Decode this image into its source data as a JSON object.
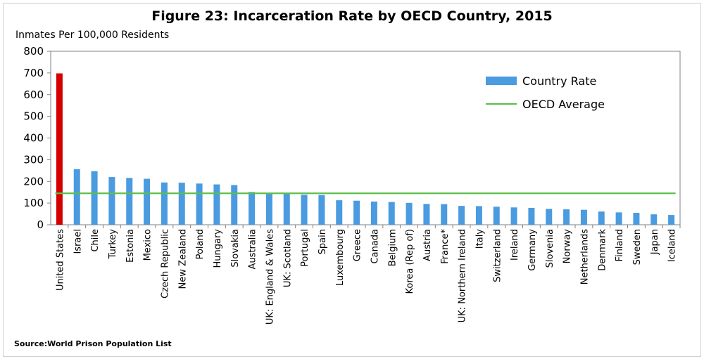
{
  "chart_data": {
    "type": "bar",
    "title": "Figure 23: Incarceration Rate by OECD Country, 2015",
    "ylabel": "Inmates Per 100,000 Residents",
    "ylim": [
      0,
      800
    ],
    "yticks": [
      0,
      100,
      200,
      300,
      400,
      500,
      600,
      700,
      800
    ],
    "grid": false,
    "legend_position": "top-right",
    "categories": [
      "United States",
      "Israel",
      "Chile",
      "Turkey",
      "Estonia",
      "Mexico",
      "Czech Republic",
      "New Zealand",
      "Poland",
      "Hungary",
      "Slovakia",
      "Australia",
      "UK: England & Wales",
      "UK: Scotland",
      "Portugal",
      "Spain",
      "Luxembourg",
      "Greece",
      "Canada",
      "Belgium",
      "Korea (Rep of)",
      "Austria",
      "France*",
      "UK: Northern Ireland",
      "Italy",
      "Switzerland",
      "Ireland",
      "Germany",
      "Slovenia",
      "Norway",
      "Netherlands",
      "Denmark",
      "Finland",
      "Sweden",
      "Japan",
      "Iceland"
    ],
    "series": [
      {
        "name": "Country Rate",
        "color": "#4a9be0",
        "values": [
          698,
          256,
          247,
          220,
          216,
          212,
          195,
          194,
          190,
          186,
          183,
          151,
          146,
          143,
          138,
          137,
          113,
          111,
          107,
          105,
          101,
          96,
          95,
          87,
          86,
          83,
          80,
          78,
          73,
          71,
          69,
          61,
          57,
          55,
          48,
          45
        ]
      },
      {
        "name": "OECD Average",
        "color": "#5cbf4a",
        "type": "line",
        "value": 145
      }
    ],
    "highlight": {
      "category": "United States",
      "color": "#d40000"
    }
  },
  "footer": {
    "source": "Source:World Prison Population List"
  }
}
